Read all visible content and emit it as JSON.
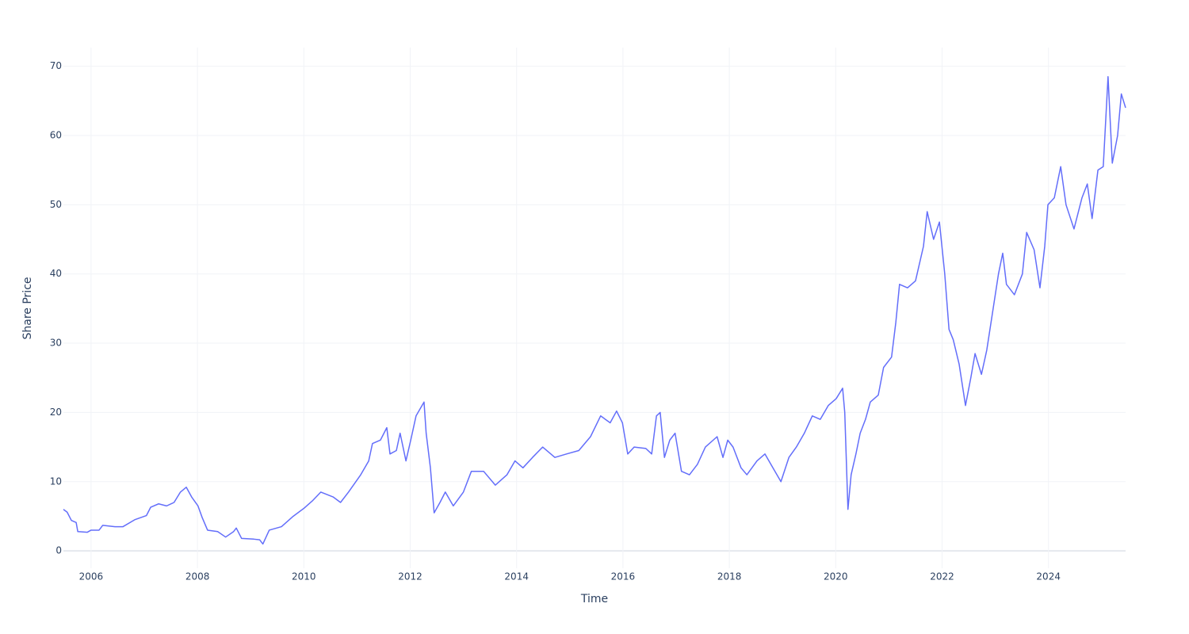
{
  "chart_data": {
    "type": "line",
    "x_label": "Time",
    "y_label": "Share Price",
    "color": "#636efa",
    "grid": true,
    "xlim": [
      2005.48,
      2025.45
    ],
    "xticks": [
      2006,
      2008,
      2010,
      2012,
      2014,
      2016,
      2018,
      2020,
      2022,
      2024
    ],
    "ylim": [
      -2.5,
      72.7
    ],
    "yticks": [
      0,
      10,
      20,
      30,
      40,
      50,
      60,
      70
    ],
    "x": [
      2005.48,
      2005.55,
      2005.63,
      2005.72,
      2005.75,
      2005.93,
      2006.0,
      2006.15,
      2006.22,
      2006.45,
      2006.6,
      2006.82,
      2007.04,
      2007.12,
      2007.27,
      2007.42,
      2007.56,
      2007.68,
      2007.79,
      2007.89,
      2008.01,
      2008.09,
      2008.19,
      2008.38,
      2008.53,
      2008.68,
      2008.73,
      2008.83,
      2009.06,
      2009.17,
      2009.23,
      2009.35,
      2009.58,
      2009.8,
      2010.01,
      2010.17,
      2010.32,
      2010.55,
      2010.69,
      2010.84,
      2011.07,
      2011.22,
      2011.29,
      2011.44,
      2011.56,
      2011.62,
      2011.74,
      2011.81,
      2011.92,
      2012.01,
      2012.11,
      2012.26,
      2012.3,
      2012.38,
      2012.45,
      2012.56,
      2012.66,
      2012.81,
      2013.0,
      2013.15,
      2013.38,
      2013.6,
      2013.82,
      2013.97,
      2014.12,
      2014.3,
      2014.49,
      2014.72,
      2014.94,
      2015.17,
      2015.39,
      2015.58,
      2015.76,
      2015.88,
      2015.99,
      2016.09,
      2016.21,
      2016.43,
      2016.54,
      2016.63,
      2016.7,
      2016.78,
      2016.88,
      2016.98,
      2017.1,
      2017.25,
      2017.4,
      2017.55,
      2017.77,
      2017.88,
      2017.97,
      2018.07,
      2018.22,
      2018.33,
      2018.52,
      2018.67,
      2018.82,
      2018.97,
      2019.12,
      2019.26,
      2019.41,
      2019.56,
      2019.71,
      2019.86,
      2020.01,
      2020.13,
      2020.17,
      2020.23,
      2020.29,
      2020.38,
      2020.46,
      2020.56,
      2020.65,
      2020.8,
      2020.9,
      2021.05,
      2021.13,
      2021.2,
      2021.35,
      2021.5,
      2021.65,
      2021.72,
      2021.84,
      2021.95,
      2022.05,
      2022.13,
      2022.21,
      2022.32,
      2022.44,
      2022.54,
      2022.62,
      2022.74,
      2022.84,
      2022.94,
      2023.06,
      2023.14,
      2023.21,
      2023.36,
      2023.51,
      2023.59,
      2023.73,
      2023.84,
      2023.93,
      2023.99,
      2024.11,
      2024.23,
      2024.33,
      2024.48,
      2024.63,
      2024.73,
      2024.82,
      2024.93,
      2025.03,
      2025.12,
      2025.2,
      2025.3,
      2025.37,
      2025.45
    ],
    "values": [
      6.0,
      5.6,
      4.4,
      4.1,
      2.8,
      2.7,
      3.0,
      3.0,
      3.7,
      3.5,
      3.5,
      4.5,
      5.1,
      6.3,
      6.8,
      6.5,
      7.0,
      8.5,
      9.2,
      7.8,
      6.5,
      4.8,
      3.0,
      2.8,
      2.0,
      2.8,
      3.3,
      1.8,
      1.7,
      1.6,
      1.0,
      3.0,
      3.5,
      5.0,
      6.2,
      7.3,
      8.5,
      7.8,
      7.0,
      8.5,
      11.0,
      13.0,
      15.5,
      16.0,
      17.8,
      14.0,
      14.5,
      17.0,
      13.0,
      16.0,
      19.5,
      21.5,
      17.0,
      12.0,
      5.5,
      7.0,
      8.5,
      6.5,
      8.5,
      11.5,
      11.5,
      9.5,
      11.0,
      13.0,
      12.0,
      13.5,
      15.0,
      13.5,
      14.0,
      14.5,
      16.5,
      19.5,
      18.5,
      20.2,
      18.5,
      14.0,
      15.0,
      14.8,
      14.0,
      19.5,
      20.0,
      13.5,
      16.0,
      17.0,
      11.5,
      11.0,
      12.5,
      15.0,
      16.5,
      13.5,
      16.0,
      15.0,
      12.0,
      11.0,
      13.0,
      14.0,
      12.0,
      10.0,
      13.5,
      15.0,
      17.0,
      19.5,
      19.0,
      21.0,
      22.0,
      23.5,
      20.0,
      6.0,
      11.0,
      14.0,
      17.0,
      19.0,
      21.5,
      22.5,
      26.5,
      28.0,
      33.0,
      38.5,
      38.0,
      39.0,
      44.0,
      49.0,
      45.0,
      47.5,
      40.0,
      32.0,
      30.5,
      27.0,
      21.0,
      25.0,
      28.5,
      25.5,
      29.0,
      34.0,
      40.0,
      43.0,
      38.5,
      37.0,
      40.0,
      46.0,
      43.5,
      38.0,
      44.0,
      50.0,
      51.0,
      55.5,
      50.0,
      46.5,
      51.0,
      53.0,
      48.0,
      55.0,
      55.5,
      68.5,
      56.0,
      60.0,
      66.0,
      64.0
    ]
  }
}
